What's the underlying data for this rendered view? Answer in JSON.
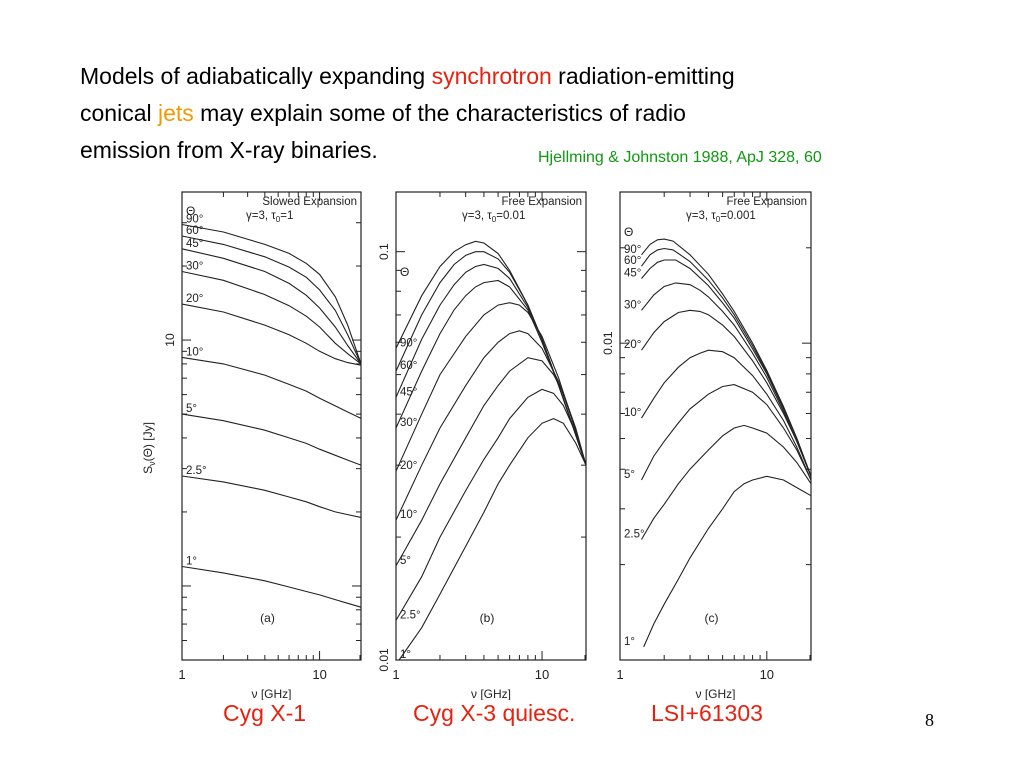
{
  "slide": {
    "title_part1": "Models of adiabatically expanding ",
    "title_highlight1": "synchrotron",
    "title_part2": " radiation-emitting",
    "title_part3": "conical ",
    "title_highlight2": "jets",
    "title_part4": "  may explain some of the characteristics of radio",
    "title_part5": "emission from X-ray binaries.",
    "reference": "Hjellming & Johnston 1988, ApJ 328, 60",
    "captions": [
      "Cyg X-1",
      "Cyg X-3 quiesc.",
      "LSI+61303"
    ],
    "page_number": "8",
    "colors": {
      "highlight_red": "#e8210f",
      "highlight_orange": "#f29a00",
      "reference_green": "#0f9a0f"
    }
  },
  "chart_data": [
    {
      "type": "line",
      "panel_label": "(a)",
      "title_line1": "Slowed Expansion",
      "title_line2": "γ=3, τ",
      "title_sub": "0",
      "title_line2_tail": "=1",
      "xlabel": "ν [GHz]",
      "ylabel": "S",
      "ylabel_sub": "ν",
      "ylabel_tail": "(Θ) [Jy]",
      "x_scale": "log",
      "y_scale": "log",
      "xlim": [
        1,
        20
      ],
      "ylim": [
        0.5,
        40
      ],
      "x_ticks": [
        {
          "v": 1,
          "label": "1"
        },
        {
          "v": 10,
          "label": "10"
        }
      ],
      "y_ticks": [
        {
          "v": 10,
          "label": "10"
        }
      ],
      "theta_header": "Θ",
      "series": [
        {
          "name": "90°",
          "x": [
            1,
            2,
            4,
            6,
            8,
            10,
            13,
            16,
            20
          ],
          "y": [
            29.5,
            27.5,
            24.5,
            22.5,
            20.5,
            18.5,
            15.0,
            11.5,
            8.0
          ]
        },
        {
          "name": "60°",
          "x": [
            1,
            2,
            4,
            6,
            8,
            10,
            13,
            16,
            20
          ],
          "y": [
            26.5,
            24.5,
            21.8,
            19.8,
            18.0,
            16.0,
            13.2,
            10.5,
            8.0
          ]
        },
        {
          "name": "45°",
          "x": [
            1,
            2,
            4,
            6,
            8,
            10,
            13,
            16,
            20
          ],
          "y": [
            23.5,
            21.5,
            19.0,
            17.0,
            15.2,
            13.5,
            11.3,
            9.5,
            8.0
          ]
        },
        {
          "name": "30°",
          "x": [
            1,
            2,
            4,
            6,
            8,
            10,
            13,
            16,
            20
          ],
          "y": [
            19.0,
            17.5,
            15.3,
            13.8,
            12.5,
            11.3,
            9.7,
            8.8,
            8.0
          ]
        },
        {
          "name": "20°",
          "x": [
            1,
            2,
            4,
            6,
            8,
            10,
            13,
            16,
            20
          ],
          "y": [
            14.0,
            13.0,
            11.5,
            10.5,
            9.7,
            9.0,
            8.4,
            8.1,
            7.9
          ]
        },
        {
          "name": "10°",
          "x": [
            1,
            2,
            4,
            6,
            8,
            10,
            13,
            16,
            20
          ],
          "y": [
            8.5,
            8.0,
            7.2,
            6.6,
            6.2,
            5.8,
            5.4,
            5.1,
            4.8
          ]
        },
        {
          "name": "5°",
          "x": [
            1,
            2,
            4,
            6,
            8,
            10,
            13,
            16,
            20
          ],
          "y": [
            5.0,
            4.7,
            4.3,
            4.0,
            3.8,
            3.6,
            3.4,
            3.25,
            3.1
          ]
        },
        {
          "name": "2.5°",
          "x": [
            1,
            2,
            4,
            6,
            8,
            10,
            13,
            16,
            20
          ],
          "y": [
            2.8,
            2.65,
            2.45,
            2.3,
            2.2,
            2.1,
            2.0,
            1.95,
            1.9
          ]
        },
        {
          "name": "1°",
          "x": [
            1,
            2,
            4,
            6,
            8,
            10,
            13,
            16,
            20
          ],
          "y": [
            1.2,
            1.13,
            1.05,
            0.99,
            0.95,
            0.92,
            0.88,
            0.85,
            0.82
          ]
        }
      ]
    },
    {
      "type": "line",
      "panel_label": "(b)",
      "title_line1": "Free Expansion",
      "title_line2": "γ=3, τ",
      "title_sub": "0",
      "title_line2_tail": "=0.01",
      "xlabel": "ν [GHz]",
      "ylabel": "",
      "x_scale": "log",
      "y_scale": "log",
      "xlim": [
        1,
        20
      ],
      "ylim": [
        0.01,
        0.14
      ],
      "x_ticks": [
        {
          "v": 1,
          "label": "1"
        },
        {
          "v": 10,
          "label": "10"
        }
      ],
      "y_ticks": [
        {
          "v": 0.01,
          "label": "0.01"
        },
        {
          "v": 0.1,
          "label": "0.1"
        }
      ],
      "theta_header": "Θ",
      "series": [
        {
          "name": "90°",
          "x": [
            1,
            1.5,
            2,
            2.5,
            3,
            3.5,
            4,
            5,
            6,
            8,
            10,
            13,
            16,
            20
          ],
          "y": [
            0.058,
            0.078,
            0.092,
            0.1,
            0.104,
            0.106,
            0.105,
            0.099,
            0.09,
            0.074,
            0.061,
            0.047,
            0.038,
            0.03
          ]
        },
        {
          "name": "60°",
          "x": [
            1,
            1.5,
            2,
            2.5,
            3,
            3.5,
            4,
            5,
            6,
            8,
            10,
            13,
            16,
            20
          ],
          "y": [
            0.051,
            0.07,
            0.084,
            0.093,
            0.098,
            0.1,
            0.1,
            0.096,
            0.089,
            0.074,
            0.061,
            0.047,
            0.038,
            0.03
          ]
        },
        {
          "name": "45°",
          "x": [
            1,
            1.5,
            2,
            2.5,
            3,
            3.5,
            4,
            5,
            6,
            8,
            10,
            13,
            16,
            20
          ],
          "y": [
            0.044,
            0.061,
            0.074,
            0.083,
            0.089,
            0.092,
            0.093,
            0.091,
            0.086,
            0.073,
            0.061,
            0.047,
            0.038,
            0.03
          ]
        },
        {
          "name": "30°",
          "x": [
            1,
            1.5,
            2,
            2.5,
            3,
            3.5,
            4,
            5,
            6,
            8,
            10,
            13,
            16,
            20
          ],
          "y": [
            0.037,
            0.051,
            0.063,
            0.072,
            0.078,
            0.082,
            0.084,
            0.085,
            0.082,
            0.072,
            0.06,
            0.047,
            0.038,
            0.03
          ]
        },
        {
          "name": "20°",
          "x": [
            1,
            1.5,
            2,
            3,
            4,
            5,
            6,
            7,
            8,
            10,
            13,
            16,
            20
          ],
          "y": [
            0.029,
            0.04,
            0.05,
            0.062,
            0.07,
            0.074,
            0.075,
            0.074,
            0.071,
            0.062,
            0.049,
            0.039,
            0.03
          ]
        },
        {
          "name": "10°",
          "x": [
            1,
            1.5,
            2,
            3,
            4,
            5,
            6,
            7,
            8,
            10,
            13,
            16,
            20
          ],
          "y": [
            0.022,
            0.03,
            0.037,
            0.047,
            0.055,
            0.06,
            0.063,
            0.064,
            0.063,
            0.058,
            0.048,
            0.039,
            0.03
          ]
        },
        {
          "name": "5°",
          "x": [
            1,
            1.5,
            2,
            3,
            4,
            5,
            6,
            8,
            10,
            12,
            14,
            17,
            20
          ],
          "y": [
            0.017,
            0.022,
            0.027,
            0.035,
            0.042,
            0.047,
            0.051,
            0.055,
            0.054,
            0.05,
            0.045,
            0.037,
            0.03
          ]
        },
        {
          "name": "2.5°",
          "x": [
            1,
            1.5,
            2,
            3,
            4,
            5,
            6,
            8,
            10,
            12,
            14,
            17,
            20
          ],
          "y": [
            0.0125,
            0.016,
            0.02,
            0.026,
            0.031,
            0.035,
            0.039,
            0.044,
            0.046,
            0.045,
            0.042,
            0.036,
            0.03
          ]
        },
        {
          "name": "1°",
          "x": [
            1.05,
            1.5,
            2,
            3,
            4,
            5,
            6,
            8,
            10,
            12,
            14,
            17,
            20
          ],
          "y": [
            0.01,
            0.012,
            0.0145,
            0.019,
            0.023,
            0.027,
            0.03,
            0.035,
            0.038,
            0.039,
            0.038,
            0.034,
            0.03
          ]
        }
      ]
    },
    {
      "type": "line",
      "panel_label": "(c)",
      "title_line1": "Free Expansion",
      "title_line2": "γ=3, τ",
      "title_sub": "0",
      "title_line2_tail": "=0.001",
      "xlabel": "ν [GHz]",
      "ylabel": "",
      "x_scale": "log",
      "y_scale": "log",
      "xlim": [
        1,
        20
      ],
      "ylim": [
        0.001,
        0.03
      ],
      "x_ticks": [
        {
          "v": 1,
          "label": "1"
        },
        {
          "v": 10,
          "label": "10"
        }
      ],
      "y_ticks": [
        {
          "v": 0.01,
          "label": "0.01"
        }
      ],
      "theta_header": "Θ",
      "series": [
        {
          "name": "90°",
          "x": [
            1.4,
            1.6,
            1.8,
            2.0,
            2.3,
            3,
            4,
            5,
            6,
            8,
            10,
            13,
            16,
            20
          ],
          "y": [
            0.019,
            0.0205,
            0.0212,
            0.0213,
            0.021,
            0.019,
            0.0165,
            0.0143,
            0.0126,
            0.01,
            0.0082,
            0.0063,
            0.005,
            0.0038
          ]
        },
        {
          "name": "60°",
          "x": [
            1.4,
            1.6,
            1.8,
            2.0,
            2.3,
            3,
            4,
            5,
            6,
            8,
            10,
            13,
            16,
            20
          ],
          "y": [
            0.0175,
            0.019,
            0.0197,
            0.0199,
            0.0197,
            0.0181,
            0.0158,
            0.0139,
            0.0123,
            0.0098,
            0.0081,
            0.0063,
            0.005,
            0.0038
          ]
        },
        {
          "name": "45°",
          "x": [
            1.4,
            1.6,
            1.8,
            2.0,
            2.4,
            3,
            4,
            5,
            6,
            8,
            10,
            13,
            16,
            20
          ],
          "y": [
            0.016,
            0.0172,
            0.018,
            0.0183,
            0.0183,
            0.0172,
            0.0152,
            0.0134,
            0.012,
            0.0096,
            0.008,
            0.0062,
            0.005,
            0.0038
          ]
        },
        {
          "name": "30°",
          "x": [
            1.4,
            1.7,
            2.0,
            2.4,
            3,
            3.5,
            4,
            5,
            6,
            8,
            10,
            13,
            16,
            20
          ],
          "y": [
            0.0127,
            0.0142,
            0.0151,
            0.0155,
            0.0153,
            0.0147,
            0.014,
            0.0126,
            0.0114,
            0.0093,
            0.0078,
            0.0061,
            0.0049,
            0.0038
          ]
        },
        {
          "name": "20°",
          "x": [
            1.4,
            1.7,
            2.0,
            2.5,
            3,
            3.5,
            4,
            5,
            6,
            8,
            10,
            13,
            16,
            20
          ],
          "y": [
            0.0095,
            0.0108,
            0.0117,
            0.0125,
            0.0127,
            0.0126,
            0.0123,
            0.0114,
            0.0105,
            0.0088,
            0.0075,
            0.006,
            0.0049,
            0.0038
          ]
        },
        {
          "name": "10°",
          "x": [
            1.4,
            1.7,
            2.0,
            2.5,
            3,
            3.5,
            4,
            5,
            6,
            8,
            10,
            13,
            16,
            20
          ],
          "y": [
            0.0058,
            0.0067,
            0.0075,
            0.0084,
            0.009,
            0.0093,
            0.0095,
            0.0094,
            0.009,
            0.0079,
            0.0069,
            0.0057,
            0.0047,
            0.0037
          ]
        },
        {
          "name": "5°",
          "x": [
            1.4,
            1.7,
            2.0,
            2.5,
            3,
            4,
            5,
            6,
            8,
            10,
            13,
            16,
            20
          ],
          "y": [
            0.0037,
            0.0044,
            0.0049,
            0.0056,
            0.0062,
            0.0069,
            0.0073,
            0.0074,
            0.007,
            0.0064,
            0.0054,
            0.0046,
            0.0037
          ]
        },
        {
          "name": "2.5°",
          "x": [
            1.4,
            1.7,
            2.0,
            2.5,
            3,
            4,
            5,
            6,
            7,
            8,
            10,
            13,
            16,
            20
          ],
          "y": [
            0.0024,
            0.0028,
            0.0031,
            0.0036,
            0.004,
            0.0046,
            0.0051,
            0.0054,
            0.0055,
            0.0054,
            0.0052,
            0.0047,
            0.0042,
            0.0036
          ]
        },
        {
          "name": "1°",
          "x": [
            1.45,
            1.7,
            2.0,
            2.5,
            3,
            4,
            5,
            6,
            7,
            8,
            10,
            13,
            16,
            20
          ],
          "y": [
            0.0011,
            0.0013,
            0.0015,
            0.0018,
            0.0021,
            0.0026,
            0.003,
            0.0034,
            0.0036,
            0.0037,
            0.0038,
            0.0037,
            0.0035,
            0.0033
          ]
        }
      ]
    }
  ]
}
